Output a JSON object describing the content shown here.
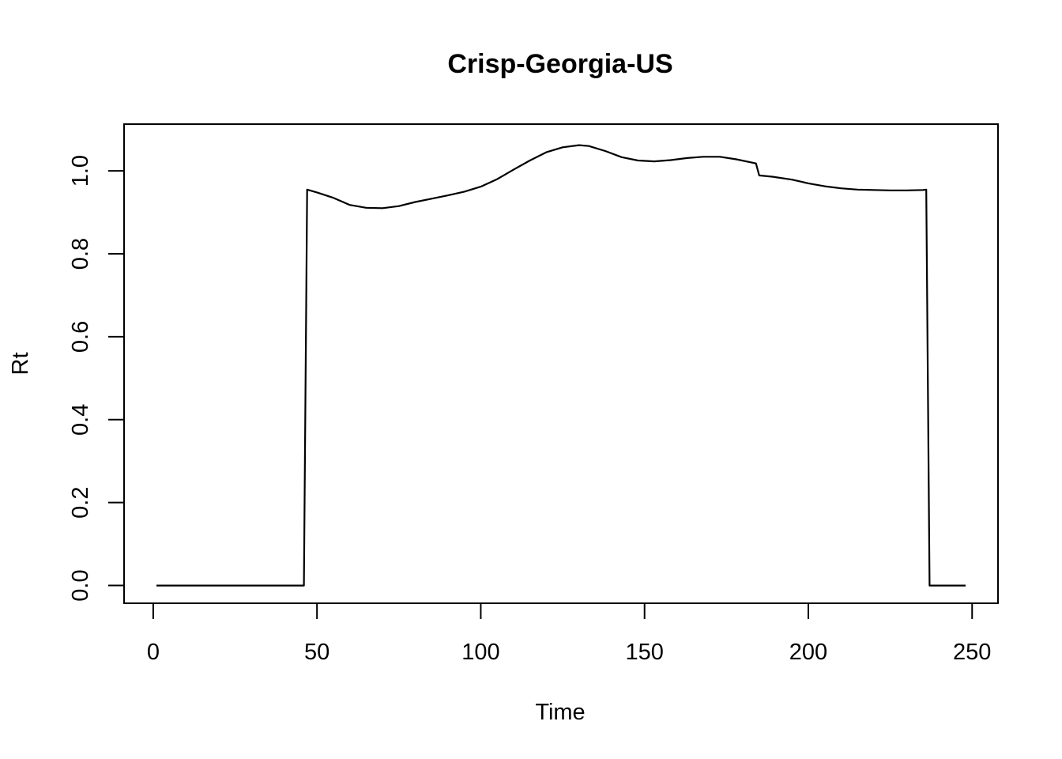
{
  "chart_data": {
    "type": "line",
    "title": "Crisp-Georgia-US",
    "xlabel": "Time",
    "ylabel": "Rt",
    "xlim": [
      -8.9,
      257.9
    ],
    "ylim": [
      -0.0428,
      1.1128
    ],
    "x_ticks": [
      0,
      50,
      100,
      150,
      200,
      250
    ],
    "y_ticks": [
      0.0,
      0.2,
      0.4,
      0.6,
      0.8,
      1.0
    ],
    "x_tick_labels": [
      "0",
      "50",
      "100",
      "150",
      "200",
      "250"
    ],
    "y_tick_labels": [
      "0.0",
      "0.2",
      "0.4",
      "0.6",
      "0.8",
      "1.0"
    ],
    "grid": false,
    "legend": "none",
    "series": [
      {
        "color": "#000000",
        "x": [
          1,
          46,
          47,
          50,
          55,
          60,
          65,
          70,
          75,
          80,
          85,
          90,
          95,
          100,
          105,
          110,
          115,
          120,
          125,
          130,
          133,
          138,
          143,
          148,
          153,
          158,
          163,
          168,
          173,
          178,
          184,
          185,
          189,
          195,
          200,
          205,
          210,
          215,
          220,
          225,
          230,
          235,
          236,
          237,
          248
        ],
        "y": [
          0.0,
          0.0,
          0.955,
          0.948,
          0.935,
          0.918,
          0.911,
          0.91,
          0.915,
          0.925,
          0.933,
          0.941,
          0.95,
          0.962,
          0.98,
          1.003,
          1.025,
          1.045,
          1.057,
          1.062,
          1.06,
          1.048,
          1.033,
          1.025,
          1.023,
          1.026,
          1.031,
          1.034,
          1.034,
          1.028,
          1.018,
          0.989,
          0.986,
          0.979,
          0.97,
          0.963,
          0.958,
          0.955,
          0.954,
          0.953,
          0.953,
          0.954,
          0.955,
          0.0,
          0.0
        ]
      }
    ]
  }
}
